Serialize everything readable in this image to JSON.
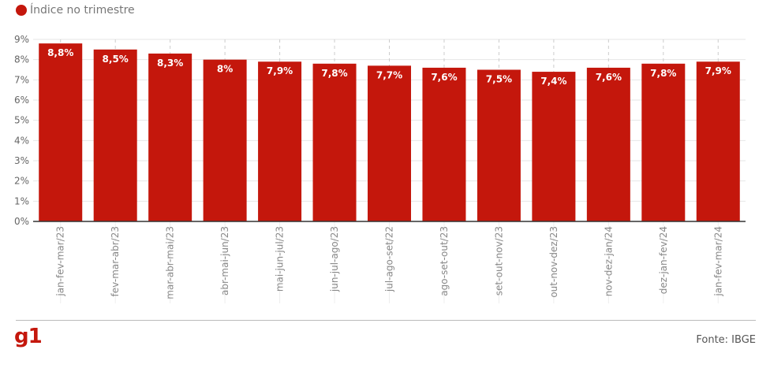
{
  "legend": {
    "label": "Índice no trimestre",
    "color": "#c4170c"
  },
  "chart_data": {
    "type": "bar",
    "title": "",
    "xlabel": "",
    "ylabel": "",
    "categories": [
      "jan-fev-mar/23",
      "fev-mar-abr/23",
      "mar-abr-mai/23",
      "abr-mai-jun/23",
      "mai-jun-jul/23",
      "jun-jul-ago/23",
      "jul-ago-set/22",
      "ago-set-out/23",
      "set-out-nov/23",
      "out-nov-dez/23",
      "nov-dez-jan/24",
      "dez-jan-fev/24",
      "jan-fev-mar/24"
    ],
    "values": [
      8.8,
      8.5,
      8.3,
      8.0,
      7.9,
      7.8,
      7.7,
      7.6,
      7.5,
      7.4,
      7.6,
      7.8,
      7.9
    ],
    "data_labels": [
      "8,8%",
      "8,5%",
      "8,3%",
      "8%",
      "7,9%",
      "7,8%",
      "7,7%",
      "7,6%",
      "7,5%",
      "7,4%",
      "7,6%",
      "7,8%",
      "7,9%"
    ],
    "ylim": [
      0,
      9
    ],
    "yticks": [
      "0%",
      "1%",
      "2%",
      "3%",
      "4%",
      "5%",
      "6%",
      "7%",
      "8%",
      "9%"
    ],
    "grid": true,
    "bar_color": "#c4170c"
  },
  "footer": {
    "logo": "g1",
    "source": "Fonte: IBGE"
  }
}
